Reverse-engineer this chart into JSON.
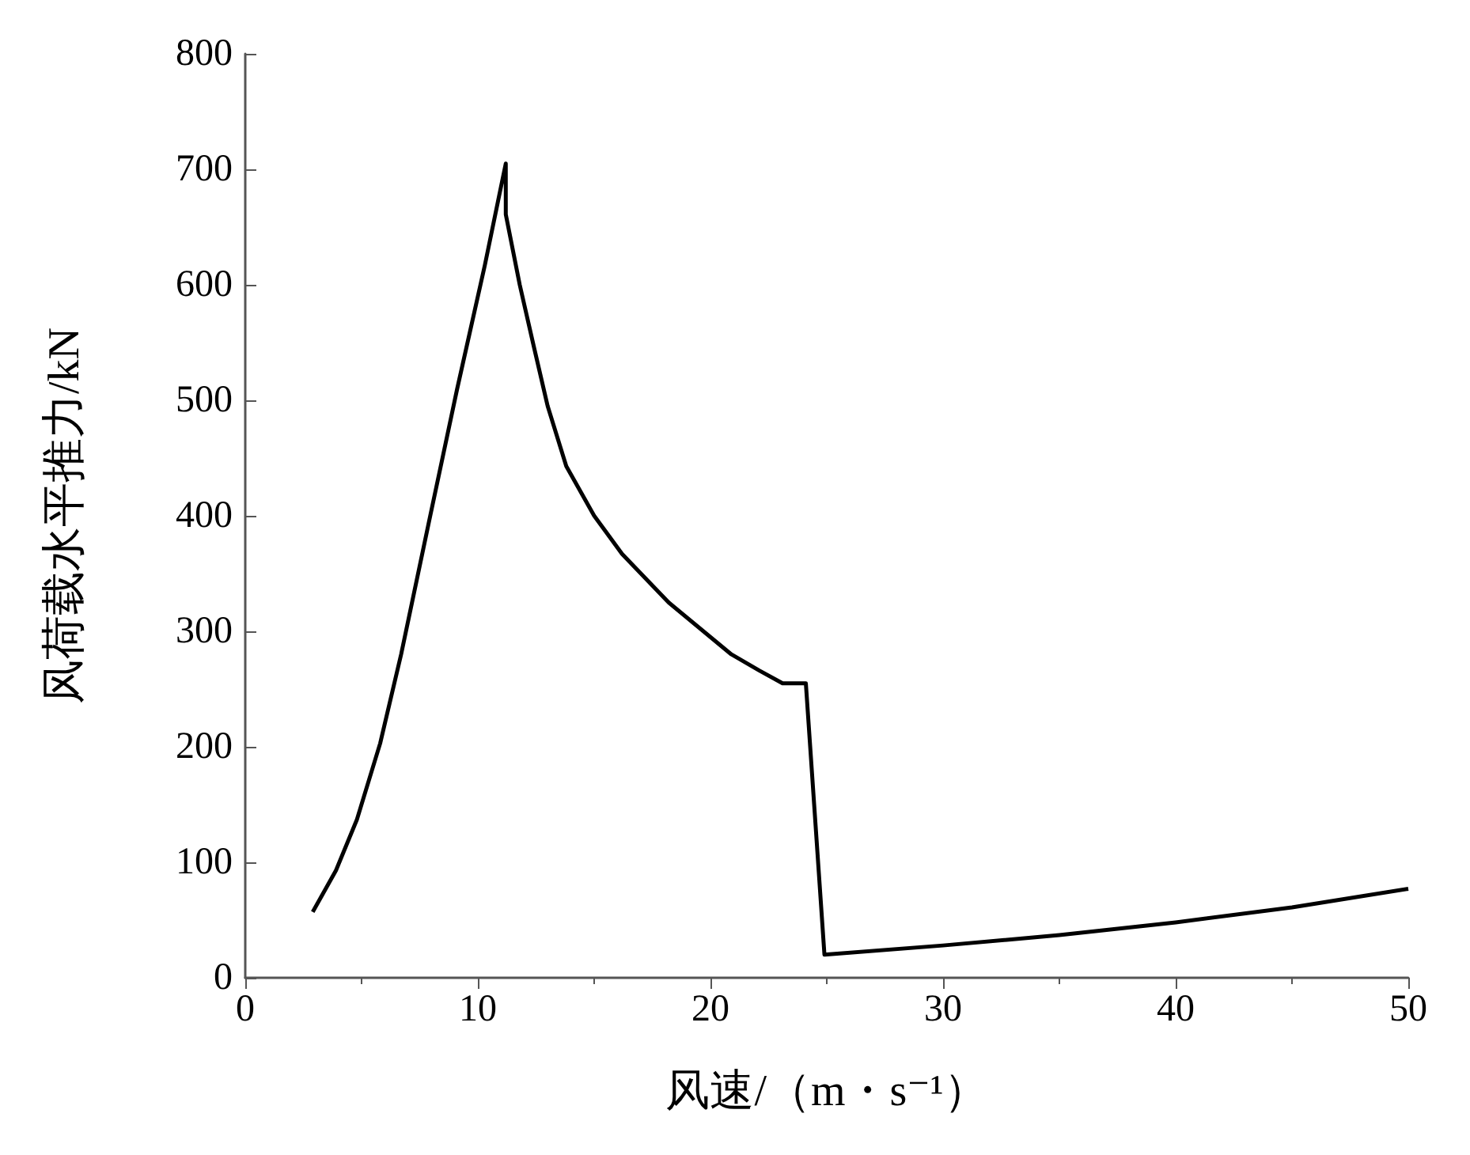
{
  "chart_data": {
    "type": "line",
    "xlabel": "风速/（m・s⁻¹）",
    "ylabel": "风荷载水平推力/kN",
    "xlim": [
      0,
      50
    ],
    "xticks": [
      0,
      10,
      20,
      30,
      40,
      50
    ],
    "ylim": [
      0,
      800
    ],
    "yticks": [
      0,
      100,
      200,
      300,
      400,
      500,
      600,
      700,
      800
    ],
    "grid": false,
    "marker": "none",
    "line_style": "solid",
    "series": [
      {
        "color": "#000000",
        "x": [
          2.9,
          3.9,
          4.8,
          5.8,
          6.7,
          7.9,
          9.1,
          10.3,
          11.2,
          11.2,
          11.8,
          12.4,
          13.0,
          13.8,
          15.0,
          16.2,
          18.2,
          20.9,
          22.1,
          23.1,
          24.1,
          24.9,
          30,
          35,
          40,
          45,
          50
        ],
        "values": [
          57,
          93,
          137,
          203,
          280,
          395,
          509,
          617,
          705,
          661,
          600,
          547,
          495,
          443,
          400,
          367,
          325,
          280,
          266,
          255,
          255,
          20,
          28,
          37,
          48,
          61,
          77
        ]
      }
    ]
  }
}
